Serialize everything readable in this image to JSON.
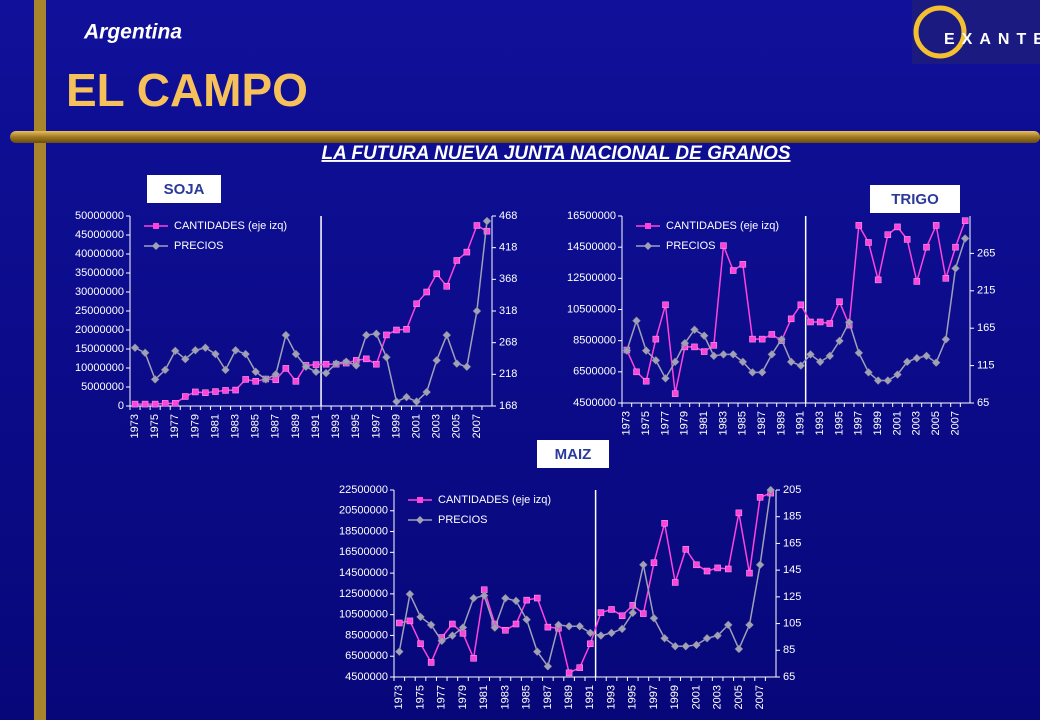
{
  "slide": {
    "country": "Argentina",
    "title": "EL CAMPO",
    "subtitle": "LA FUTURA NUEVA JUNTA NACIONAL DE GRANOS",
    "logo": "EXANTE"
  },
  "chart_data": [
    {
      "type": "line",
      "title": "SOJA",
      "categories": [
        "1973",
        null,
        "1975",
        null,
        "1977",
        null,
        "1979",
        null,
        "1981",
        null,
        "1983",
        null,
        "1985",
        null,
        "1987",
        null,
        "1989",
        null,
        "1991",
        null,
        "1993",
        null,
        "1995",
        null,
        "1997",
        null,
        "1999",
        null,
        "2001",
        null,
        "2003",
        null,
        "2005",
        null,
        "2007",
        null
      ],
      "ylim": [
        0,
        50000000
      ],
      "yticks": [
        0,
        5000000,
        10000000,
        15000000,
        20000000,
        25000000,
        30000000,
        35000000,
        40000000,
        45000000,
        50000000
      ],
      "y2lim": [
        168,
        468
      ],
      "y2ticks": [
        168,
        218,
        268,
        318,
        368,
        418,
        468
      ],
      "series": [
        {
          "name": "CANTIDADES (eje izq)",
          "color": "#ff44dd",
          "values": [
            500000,
            500000,
            500000,
            700000,
            700000,
            2500000,
            3700000,
            3500000,
            3800000,
            4100000,
            4200000,
            7000000,
            6500000,
            7100000,
            6900000,
            9900000,
            6500000,
            10700000,
            10900000,
            11000000,
            11000000,
            11300000,
            12000000,
            12400000,
            11000000,
            18700000,
            20000000,
            20200000,
            26900000,
            30000000,
            34800000,
            31500000,
            38300000,
            40500000,
            47500000,
            46000000
          ]
        },
        {
          "name": "PRECIOS",
          "color": "#a0a0b8",
          "axis": "y2",
          "values": [
            260,
            252,
            210,
            225,
            255,
            242,
            256,
            260,
            250,
            225,
            256,
            250,
            222,
            210,
            218,
            280,
            250,
            230,
            222,
            220,
            235,
            238,
            232,
            280,
            282,
            245,
            175,
            182,
            175,
            190,
            240,
            280,
            235,
            230,
            318,
            460
          ]
        }
      ]
    },
    {
      "type": "line",
      "title": "TRIGO",
      "categories": [
        "1973",
        null,
        "1975",
        null,
        "1977",
        null,
        "1979",
        null,
        "1981",
        null,
        "1983",
        null,
        "1985",
        null,
        "1987",
        null,
        "1989",
        null,
        "1991",
        null,
        "1993",
        null,
        "1995",
        null,
        "1997",
        null,
        "1999",
        null,
        "2001",
        null,
        "2003",
        null,
        "2005",
        null,
        "2007",
        null
      ],
      "ylim": [
        4500000,
        16500000
      ],
      "yticks": [
        4500000,
        6500000,
        8500000,
        10500000,
        12500000,
        14500000,
        16500000
      ],
      "y2lim": [
        65,
        315
      ],
      "y2ticks": [
        65,
        115,
        165,
        215,
        265
      ],
      "series": [
        {
          "name": "CANTIDADES (eje izq)",
          "color": "#ff44dd",
          "values": [
            7900000,
            6500000,
            5900000,
            8600000,
            10800000,
            5100000,
            8100000,
            8100000,
            7800000,
            8200000,
            14600000,
            13000000,
            13400000,
            8600000,
            8600000,
            8900000,
            8500000,
            9900000,
            10800000,
            9700000,
            9700000,
            9600000,
            11000000,
            9500000,
            15900000,
            14800000,
            12400000,
            15300000,
            15800000,
            15000000,
            12300000,
            14500000,
            15900000,
            12500000,
            14500000,
            16200000
          ]
        },
        {
          "name": "PRECIOS",
          "color": "#a0a0b8",
          "axis": "y2",
          "values": [
            135,
            175,
            135,
            122,
            98,
            120,
            145,
            163,
            155,
            128,
            130,
            130,
            120,
            106,
            106,
            130,
            150,
            120,
            115,
            130,
            120,
            128,
            148,
            173,
            132,
            106,
            95,
            95,
            103,
            120,
            125,
            128,
            119,
            150,
            245,
            285
          ]
        }
      ]
    },
    {
      "type": "line",
      "title": "MAIZ",
      "categories": [
        "1973",
        null,
        "1975",
        null,
        "1977",
        null,
        "1979",
        null,
        "1981",
        null,
        "1983",
        null,
        "1985",
        null,
        "1987",
        null,
        "1989",
        null,
        "1991",
        null,
        "1993",
        null,
        "1995",
        null,
        "1997",
        null,
        "1999",
        null,
        "2001",
        null,
        "2003",
        null,
        "2005",
        null,
        "2007",
        null
      ],
      "ylim": [
        4500000,
        22500000
      ],
      "yticks": [
        4500000,
        6500000,
        8500000,
        10500000,
        12500000,
        14500000,
        16500000,
        18500000,
        20500000,
        22500000
      ],
      "y2lim": [
        65,
        205
      ],
      "y2ticks": [
        65,
        85,
        105,
        125,
        145,
        165,
        185,
        205
      ],
      "series": [
        {
          "name": "CANTIDADES (eje izq)",
          "color": "#ff44dd",
          "values": [
            9700000,
            9900000,
            7700000,
            5900000,
            8300000,
            9600000,
            8700000,
            6300000,
            12900000,
            9600000,
            9000000,
            9600000,
            11900000,
            12100000,
            9300000,
            9200000,
            4900000,
            5400000,
            7700000,
            10700000,
            11000000,
            10400000,
            11400000,
            10600000,
            15500000,
            19300000,
            13600000,
            16800000,
            15300000,
            14700000,
            15000000,
            14900000,
            20300000,
            14500000,
            21800000,
            22200000
          ]
        },
        {
          "name": "PRECIOS",
          "color": "#a0a0b8",
          "axis": "y2",
          "values": [
            84,
            127,
            110,
            104,
            92,
            96,
            102,
            124,
            126,
            102,
            124,
            122,
            108,
            84,
            73,
            104,
            103,
            103,
            98,
            96,
            98,
            101,
            113,
            149,
            109,
            94,
            88,
            88,
            89,
            94,
            96,
            104,
            86,
            104,
            149,
            205
          ]
        }
      ]
    }
  ]
}
